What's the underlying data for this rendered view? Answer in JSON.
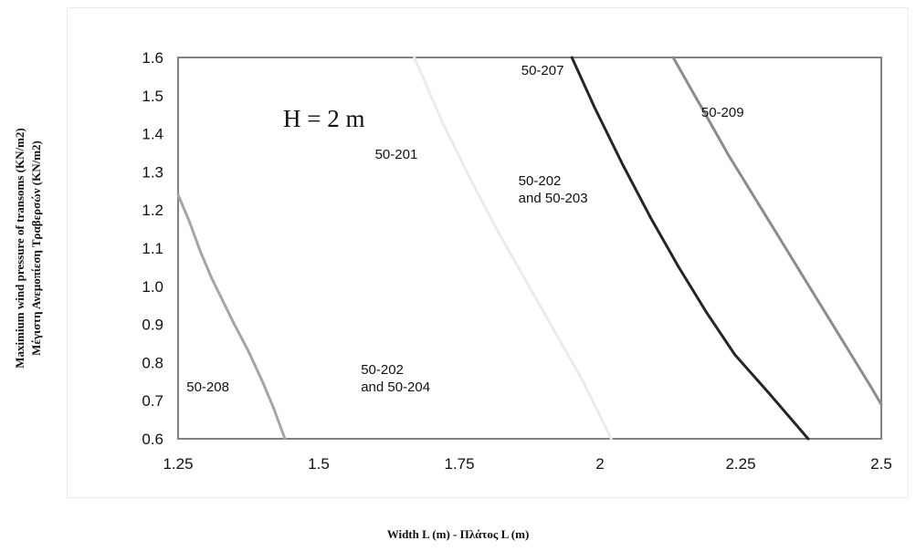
{
  "chart_data": {
    "type": "line",
    "title": "",
    "annotation": "H = 2 m",
    "xlabel": "Width L (m)  - Πλάτος L (m)",
    "ylabel_lines": [
      "Maximium wind pressure of transoms (KN/m2)",
      "Μέγιστη Ανεμοπίεση Τραβερσών (KN/m2)"
    ],
    "xlim": [
      1.25,
      2.5
    ],
    "ylim": [
      0.6,
      1.6
    ],
    "xticks": [
      "1.25",
      "1.5",
      "1.75",
      "2",
      "2.25",
      "2.5"
    ],
    "xtick_values": [
      1.25,
      1.5,
      1.75,
      2.0,
      2.25,
      2.5
    ],
    "yticks": [
      "1.6",
      "1.5",
      "1.4",
      "1.3",
      "1.2",
      "1.1",
      "1.0",
      "0.9",
      "0.8",
      "0.7",
      "0.6"
    ],
    "ytick_values": [
      1.6,
      1.5,
      1.4,
      1.3,
      1.2,
      1.1,
      1.0,
      0.9,
      0.8,
      0.7,
      0.6
    ],
    "grid": false,
    "series": [
      {
        "name": "50-208",
        "color": "#a5a5a5",
        "x": [
          1.25,
          1.27,
          1.29,
          1.31,
          1.33,
          1.35,
          1.375,
          1.4,
          1.42,
          1.44
        ],
        "y": [
          1.24,
          1.17,
          1.09,
          1.02,
          0.96,
          0.9,
          0.83,
          0.75,
          0.68,
          0.6
        ]
      },
      {
        "name": "50-201",
        "color": "#ebebeb",
        "x": [
          1.67,
          1.72,
          1.77,
          1.82,
          1.87,
          1.92,
          1.97,
          2.02
        ],
        "y": [
          1.6,
          1.43,
          1.28,
          1.14,
          1.01,
          0.88,
          0.75,
          0.6
        ]
      },
      {
        "name": "50-207",
        "color": "#252525",
        "x": [
          1.95,
          1.99,
          2.04,
          2.09,
          2.14,
          2.19,
          2.24,
          2.3,
          2.37
        ],
        "y": [
          1.6,
          1.47,
          1.32,
          1.18,
          1.05,
          0.93,
          0.82,
          0.72,
          0.6
        ]
      },
      {
        "name": "50-209",
        "color": "#8c8c8c",
        "x": [
          2.13,
          2.18,
          2.23,
          2.28,
          2.33,
          2.38,
          2.43,
          2.48,
          2.5
        ],
        "y": [
          1.6,
          1.47,
          1.34,
          1.22,
          1.1,
          0.98,
          0.86,
          0.74,
          0.69
        ]
      }
    ],
    "annotations": [
      {
        "lines": [
          "50-207"
        ],
        "x": 1.86,
        "y": 1.555
      },
      {
        "lines": [
          "50-209"
        ],
        "x": 2.18,
        "y": 1.445
      },
      {
        "lines": [
          "50-201"
        ],
        "x": 1.6,
        "y": 1.335
      },
      {
        "lines": [
          "50-202",
          "and 50-203"
        ],
        "x": 1.855,
        "y": 1.265
      },
      {
        "lines": [
          "50-208"
        ],
        "x": 1.265,
        "y": 0.725
      },
      {
        "lines": [
          "50-202",
          "and 50-204"
        ],
        "x": 1.575,
        "y": 0.77
      }
    ]
  }
}
